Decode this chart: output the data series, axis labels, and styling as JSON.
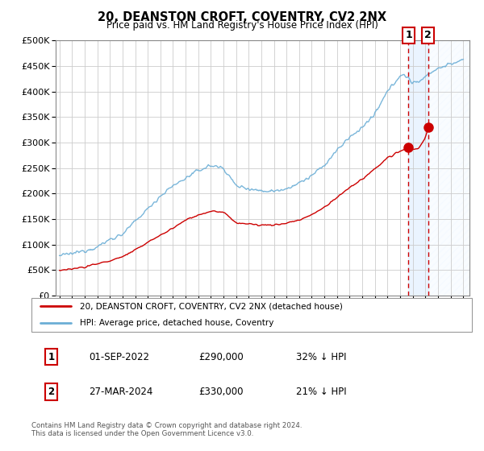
{
  "title": "20, DEANSTON CROFT, COVENTRY, CV2 2NX",
  "subtitle": "Price paid vs. HM Land Registry's House Price Index (HPI)",
  "ytick_values": [
    0,
    50000,
    100000,
    150000,
    200000,
    250000,
    300000,
    350000,
    400000,
    450000,
    500000
  ],
  "ylim": [
    0,
    500000
  ],
  "xlim_start": 1994.7,
  "xlim_end": 2027.5,
  "hpi_color": "#6baed6",
  "price_color": "#cc0000",
  "dashed_line_color": "#cc0000",
  "shade_color": "#ddeeff",
  "sale1_x": 2022.67,
  "sale1_y": 290000,
  "sale2_x": 2024.23,
  "sale2_y": 330000,
  "legend_line1": "20, DEANSTON CROFT, COVENTRY, CV2 2NX (detached house)",
  "legend_line2": "HPI: Average price, detached house, Coventry",
  "table_row1": [
    "1",
    "01-SEP-2022",
    "£290,000",
    "32% ↓ HPI"
  ],
  "table_row2": [
    "2",
    "27-MAR-2024",
    "£330,000",
    "21% ↓ HPI"
  ],
  "footer": "Contains HM Land Registry data © Crown copyright and database right 2024.\nThis data is licensed under the Open Government Licence v3.0.",
  "background_color": "#ffffff",
  "grid_color": "#cccccc"
}
